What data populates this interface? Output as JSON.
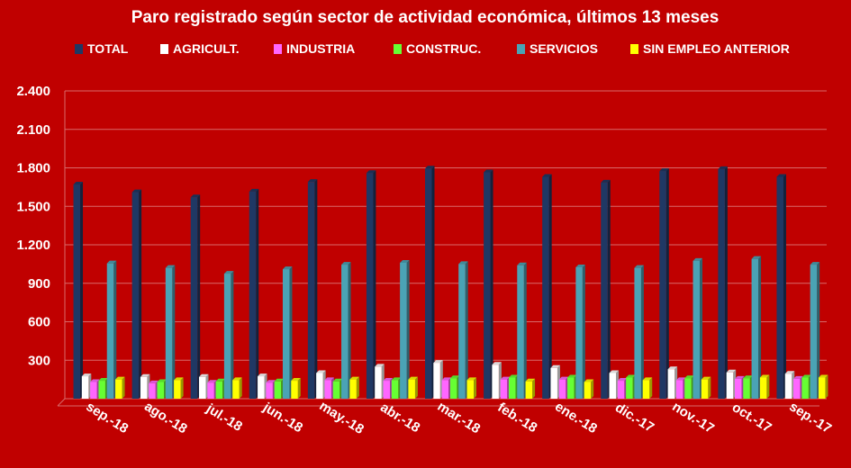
{
  "chart_data": {
    "type": "bar",
    "title": "Paro registrado según sector de actividad económica, últimos 13 meses",
    "xlabel": "",
    "ylabel": "",
    "ylim": [
      0,
      2400
    ],
    "yticks": [
      "2.400",
      "2.100",
      "1.800",
      "1.500",
      "1.200",
      "900",
      "600",
      "300",
      ""
    ],
    "ytick_values": [
      2400,
      2100,
      1800,
      1500,
      1200,
      900,
      600,
      300,
      0
    ],
    "grid": true,
    "legend_position": "top",
    "categories": [
      "sep.-18",
      "ago.-18",
      "jul.-18",
      "jun.-18",
      "may.-18",
      "abr.-18",
      "mar.-18",
      "feb.-18",
      "ene.-18",
      "dic.-17",
      "nov.-17",
      "oct.-17",
      "sep.-17"
    ],
    "series": [
      {
        "name": "TOTAL",
        "color": "#1f3864",
        "values": [
          1670,
          1610,
          1570,
          1615,
          1690,
          1760,
          1795,
          1765,
          1730,
          1685,
          1775,
          1790,
          1730
        ]
      },
      {
        "name": "AGRICULT.",
        "color": "#ffffff",
        "values": [
          175,
          170,
          170,
          175,
          200,
          250,
          280,
          265,
          240,
          200,
          230,
          205,
          195
        ]
      },
      {
        "name": "INDUSTRIA",
        "color": "#ff66ff",
        "values": [
          130,
          120,
          125,
          125,
          145,
          140,
          145,
          150,
          150,
          140,
          145,
          155,
          155
        ]
      },
      {
        "name": "CONSTRUC.",
        "color": "#66ff33",
        "values": [
          140,
          130,
          135,
          135,
          135,
          145,
          160,
          165,
          165,
          165,
          160,
          160,
          165
        ]
      },
      {
        "name": "SERVICIOS",
        "color": "#4aa3b5",
        "values": [
          1055,
          1020,
          975,
          1010,
          1045,
          1060,
          1050,
          1040,
          1025,
          1020,
          1075,
          1090,
          1045
        ]
      },
      {
        "name": "SIN EMPLEO ANTERIOR",
        "color": "#ffff00",
        "values": [
          150,
          145,
          145,
          140,
          150,
          150,
          145,
          135,
          130,
          145,
          150,
          165,
          165
        ]
      }
    ]
  }
}
